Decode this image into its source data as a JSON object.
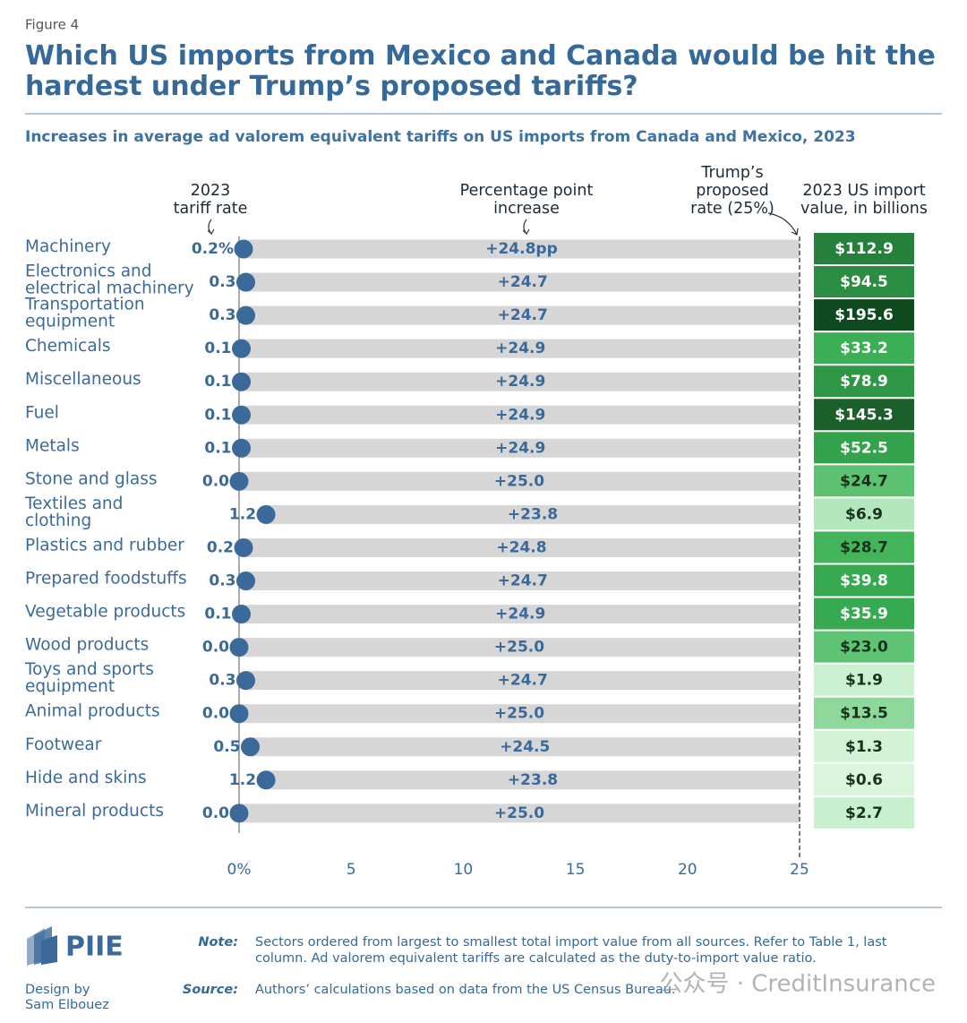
{
  "chart_data": {
    "type": "dot_range",
    "figure_label": "Figure 4",
    "title": "Which US imports from Mexico and Canada would be hit the\nhardest under Trump’s proposed tariffs?",
    "subtitle": "Increases in average ad valorem equivalent tariffs on US imports from Canada and Mexico, 2023",
    "categories": [
      "Machinery",
      "Electronics and\nelectrical machinery",
      "Transportation\nequipment",
      "Chemicals",
      "Miscellaneous",
      "Fuel",
      "Metals",
      "Stone and glass",
      "Textiles and\nclothing",
      "Plastics and rubber",
      "Prepared foodstuffs",
      "Vegetable products",
      "Wood products",
      "Toys and sports\nequipment",
      "Animal products",
      "Footwear",
      "Hide and skins",
      "Mineral products"
    ],
    "series": [
      {
        "name": "2023\ntariff rate",
        "color": "#3b6a9a",
        "values": [
          0.2,
          0.3,
          0.3,
          0.1,
          0.1,
          0.1,
          0.1,
          0.0,
          1.2,
          0.2,
          0.3,
          0.1,
          0.0,
          0.3,
          0.0,
          0.5,
          1.2,
          0.0
        ],
        "value_labels": [
          "0.2%",
          "0.3",
          "0.3",
          "0.1",
          "0.1",
          "0.1",
          "0.1",
          "0.0",
          "1.2",
          "0.2",
          "0.3",
          "0.1",
          "0.0",
          "0.3",
          "0.0",
          "0.5",
          "1.2",
          "0.0"
        ]
      },
      {
        "name": "Percentage point\nincrease",
        "color": "#d6d6d6",
        "values": [
          24.8,
          24.7,
          24.7,
          24.9,
          24.9,
          24.9,
          24.9,
          25.0,
          23.8,
          24.8,
          24.7,
          24.9,
          25.0,
          24.7,
          25.0,
          24.5,
          23.8,
          25.0
        ],
        "value_labels": [
          "+24.8pp",
          "+24.7",
          "+24.7",
          "+24.9",
          "+24.9",
          "+24.9",
          "+24.9",
          "+25.0",
          "+23.8",
          "+24.8",
          "+24.7",
          "+24.9",
          "+25.0",
          "+24.7",
          "+25.0",
          "+24.5",
          "+23.8",
          "+25.0"
        ]
      }
    ],
    "reference_line": {
      "value": 25,
      "label": "Trump’s\nproposed\nrate (25%)"
    },
    "import_values": {
      "name": "2023 US import\nvalue, in billions",
      "values": [
        112.9,
        94.5,
        195.6,
        33.2,
        78.9,
        145.3,
        52.5,
        24.7,
        6.9,
        28.7,
        39.8,
        35.9,
        23.0,
        1.9,
        13.5,
        1.3,
        0.6,
        2.7
      ],
      "value_labels": [
        "$112.9",
        "$94.5",
        "$195.6",
        "$33.2",
        "$78.9",
        "$145.3",
        "$52.5",
        "$24.7",
        "$6.9",
        "$28.7",
        "$39.8",
        "$35.9",
        "$23.0",
        "$1.9",
        "$13.5",
        "$1.3",
        "$0.6",
        "$2.7"
      ],
      "colors": [
        "#25803b",
        "#2b8d41",
        "#0f4a1f",
        "#3cae55",
        "#2e9645",
        "#1b5f2b",
        "#33a24b",
        "#5cc271",
        "#b3e7bc",
        "#44b45b",
        "#36a84f",
        "#37a950",
        "#5ec473",
        "#cbf1d0",
        "#8fd89c",
        "#d2f3d6",
        "#d9f5dc",
        "#c9f0ce"
      ]
    },
    "xlim": [
      0,
      25
    ],
    "xticks": [
      {
        "value": 0,
        "label": "0%"
      },
      5,
      10,
      15,
      20,
      25
    ]
  },
  "footer": {
    "logo": "PIIE",
    "credit": "Design by\nSam Elbouez",
    "note_label": "Note:",
    "note": "Sectors ordered from largest to smallest total import value from all sources. Refer to Table 1, last\ncolumn. Ad valorem equivalent tariffs are calculated as the duty-to-import value ratio.",
    "source_label": "Source:",
    "source": "Authors’ calculations based on data from the US Census Bureau.",
    "watermark": "公众号 · CreditInsurance"
  }
}
